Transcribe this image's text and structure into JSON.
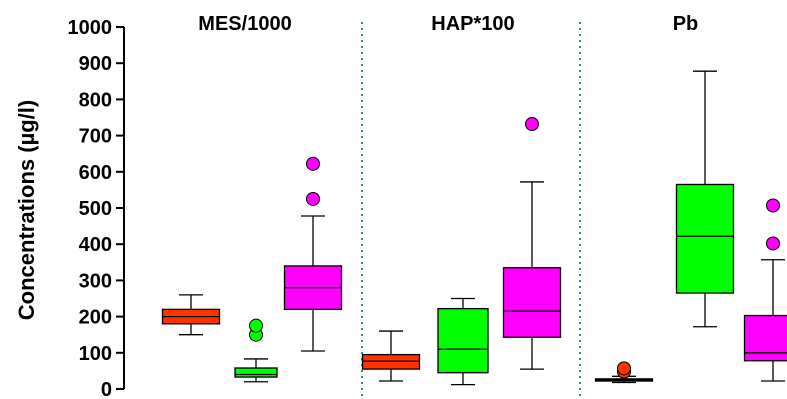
{
  "chart_data": {
    "type": "boxplot",
    "ylabel": "Concentrations  (µg/l)",
    "ylim": [
      0,
      1000
    ],
    "yticks": [
      0,
      100,
      200,
      300,
      400,
      500,
      600,
      700,
      800,
      900,
      1000
    ],
    "grid": false,
    "legend": "none",
    "panel_separator": "dotted teal vertical lines",
    "colors": {
      "red": "#ff3300",
      "green": "#00ff00",
      "magenta": "#ff00ff",
      "separator": "#2e8b8b"
    },
    "panels": [
      {
        "title": "MES/1000",
        "boxes": [
          {
            "color": "red",
            "whisker_low": 150,
            "q1": 180,
            "median": 200,
            "q3": 220,
            "whisker_high": 260,
            "outliers": []
          },
          {
            "color": "green",
            "whisker_low": 20,
            "q1": 33,
            "median": 40,
            "q3": 58,
            "whisker_high": 83,
            "outliers": [
              150,
              175
            ]
          },
          {
            "color": "magenta",
            "whisker_low": 105,
            "q1": 220,
            "median": 280,
            "q3": 340,
            "whisker_high": 478,
            "outliers": [
              525,
              622
            ]
          }
        ]
      },
      {
        "title": "HAP*100",
        "boxes": [
          {
            "color": "red",
            "whisker_low": 22,
            "q1": 55,
            "median": 77,
            "q3": 95,
            "whisker_high": 160,
            "outliers": []
          },
          {
            "color": "green",
            "whisker_low": 12,
            "q1": 45,
            "median": 110,
            "q3": 222,
            "whisker_high": 250,
            "outliers": []
          },
          {
            "color": "magenta",
            "whisker_low": 55,
            "q1": 143,
            "median": 215,
            "q3": 335,
            "whisker_high": 572,
            "outliers": [
              732
            ]
          }
        ]
      },
      {
        "title": "Pb",
        "boxes": [
          {
            "color": "red",
            "whisker_low": 18,
            "q1": 22,
            "median": 25,
            "q3": 28,
            "whisker_high": 35,
            "outliers": [
              48,
              57
            ]
          },
          {
            "color": "green",
            "whisker_low": 172,
            "q1": 265,
            "median": 422,
            "q3": 565,
            "whisker_high": 878,
            "outliers": []
          },
          {
            "color": "magenta",
            "whisker_low": 22,
            "q1": 78,
            "median": 100,
            "q3": 203,
            "whisker_high": 357,
            "outliers": [
              402,
              507
            ]
          }
        ]
      }
    ]
  }
}
